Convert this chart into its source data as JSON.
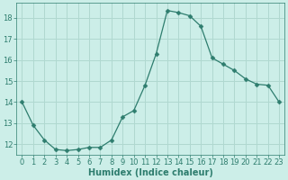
{
  "x": [
    0,
    1,
    2,
    3,
    4,
    5,
    6,
    7,
    8,
    9,
    10,
    11,
    12,
    13,
    14,
    15,
    16,
    17,
    18,
    19,
    20,
    21,
    22,
    23
  ],
  "y": [
    14.0,
    12.9,
    12.2,
    11.75,
    11.7,
    11.75,
    11.85,
    11.85,
    12.2,
    13.3,
    13.6,
    14.8,
    16.3,
    18.35,
    18.25,
    18.1,
    17.6,
    16.1,
    15.8,
    15.5,
    15.1,
    14.85,
    14.8,
    14.0
  ],
  "line_color": "#2e7d6e",
  "marker": "D",
  "marker_size": 2.5,
  "background_color": "#cceee8",
  "grid_color": "#b0d8d0",
  "xlabel": "Humidex (Indice chaleur)",
  "ylim": [
    11.5,
    18.7
  ],
  "xlim": [
    -0.5,
    23.5
  ],
  "yticks": [
    12,
    13,
    14,
    15,
    16,
    17,
    18
  ],
  "xticks": [
    0,
    1,
    2,
    3,
    4,
    5,
    6,
    7,
    8,
    9,
    10,
    11,
    12,
    13,
    14,
    15,
    16,
    17,
    18,
    19,
    20,
    21,
    22,
    23
  ],
  "tick_color": "#2e7d6e",
  "label_fontsize": 7,
  "tick_fontsize": 6
}
